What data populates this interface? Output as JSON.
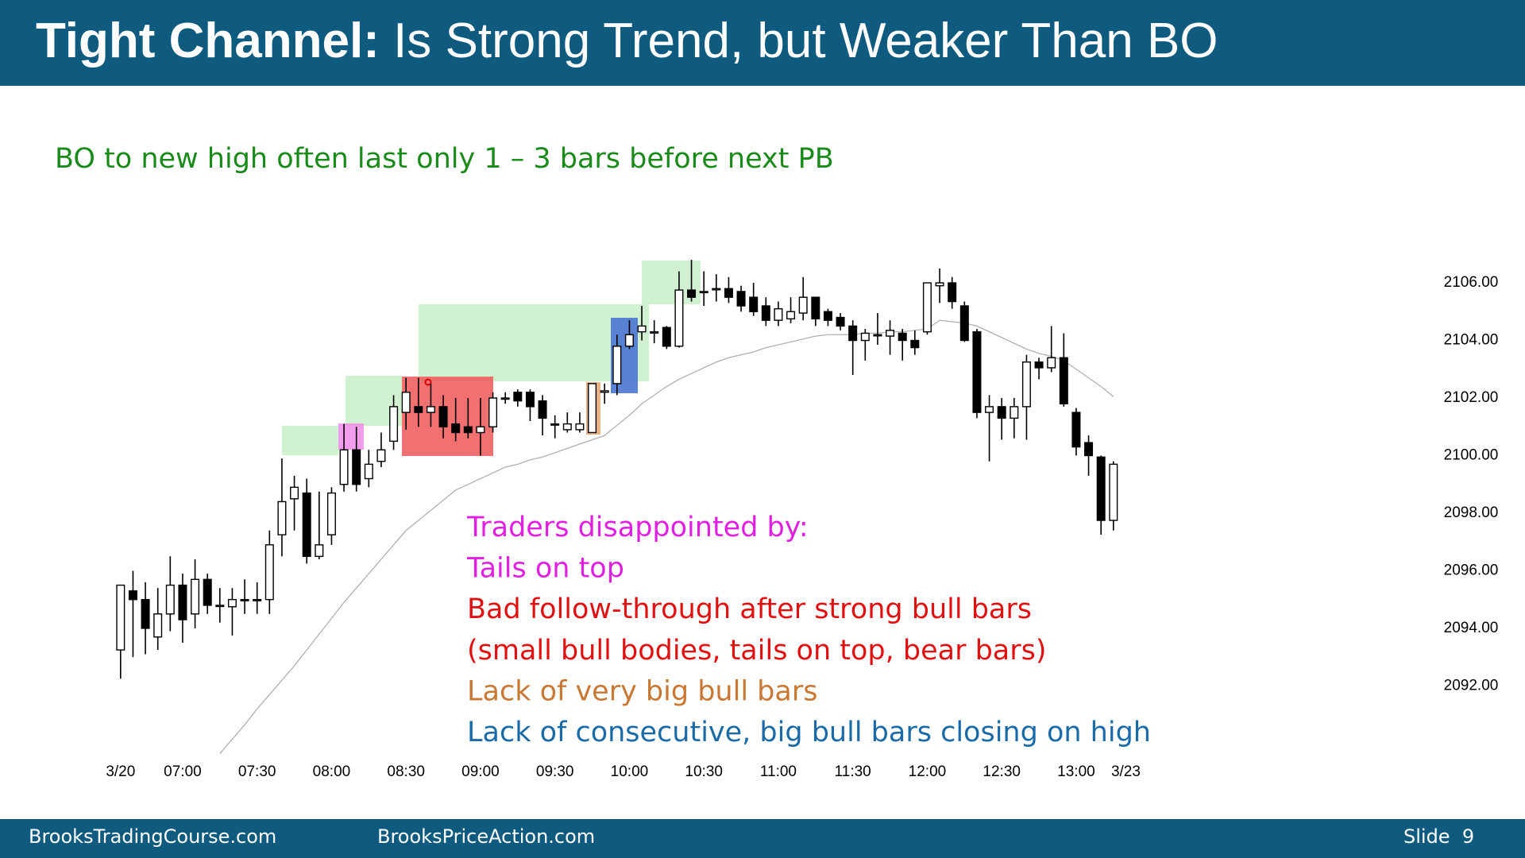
{
  "header": {
    "title_bold": "Tight Channel:",
    "title_rest": "Is Strong Trend, but Weaker Than BO"
  },
  "chart_data": {
    "type": "candlestick",
    "subtitle": "BO to new high often last only 1 – 3 bars before next PB",
    "subtitle_color": "#1a8a1a",
    "annotations": [
      {
        "text": "Traders disappointed by:",
        "color": "#e020e0"
      },
      {
        "text": "Tails on top",
        "color": "#e020e0"
      },
      {
        "text": "Bad follow-through after strong bull bars",
        "color": "#e01010"
      },
      {
        "text": "(small bull bodies, tails on top, bear bars)",
        "color": "#e01010"
      },
      {
        "text": "Lack of very big bull bars",
        "color": "#c87833"
      },
      {
        "text": "Lack of consecutive, big bull bars closing on high",
        "color": "#1a6aa8"
      }
    ],
    "categories": [
      "3/20",
      null,
      null,
      null,
      null,
      "07:00",
      null,
      null,
      null,
      null,
      null,
      "07:30",
      null,
      null,
      null,
      null,
      null,
      "08:00",
      null,
      null,
      null,
      null,
      null,
      "08:30",
      null,
      null,
      null,
      null,
      null,
      "09:00",
      null,
      null,
      null,
      null,
      null,
      "09:30",
      null,
      null,
      null,
      null,
      null,
      "10:00",
      null,
      null,
      null,
      null,
      null,
      "10:30",
      null,
      null,
      null,
      null,
      null,
      "11:00",
      null,
      null,
      null,
      null,
      null,
      "11:30",
      null,
      null,
      null,
      null,
      null,
      "12:00",
      null,
      null,
      null,
      null,
      null,
      "12:30",
      null,
      null,
      null,
      null,
      null,
      "13:00",
      null,
      null,
      null,
      "3/23"
    ],
    "open": [
      2093.25,
      2095.3,
      2095,
      2093.7,
      2094.5,
      2095.5,
      2094.5,
      2095.7,
      2094.8,
      2094.75,
      2095,
      2095,
      2095,
      2097.25,
      2098.5,
      2098.7,
      2096.5,
      2097.25,
      2099,
      2100.2,
      2099.2,
      2099.8,
      2100.5,
      2101.5,
      2101.7,
      2101.5,
      2101.7,
      2101.1,
      2101,
      2100.8,
      2101,
      2102,
      2102.2,
      2102.2,
      2101.9,
      2101.1,
      2100.9,
      2100.9,
      2100.8,
      2102.2,
      2102.5,
      2103.8,
      2104.3,
      2104.3,
      2104.45,
      2103.8,
      2105.75,
      2105.7,
      2105.8,
      2105.8,
      2105.7,
      2105.5,
      2105.2,
      2104.7,
      2104.75,
      2104.95,
      2105.5,
      2105,
      2104.8,
      2104.5,
      2104,
      2104.2,
      2104.15,
      2104.25,
      2104,
      2104.3,
      2105.9,
      2106,
      2105.2,
      2104.3,
      2101.5,
      2101.7,
      2101.3,
      2101.7,
      2103.25,
      2103.05,
      2103.4,
      2101.5,
      2100.45,
      2099.95,
      2097.75,
      null
    ],
    "high": [
      2095.5,
      2096,
      2095.6,
      2095.4,
      2096.5,
      2095.9,
      2096.4,
      2095.9,
      2095.4,
      2095.4,
      2095.7,
      2095.6,
      2097.4,
      2099.9,
      2099.3,
      2099.2,
      2098.75,
      2098.9,
      2101.1,
      2101,
      2100.2,
      2100.8,
      2102.1,
      2102.7,
      2102.7,
      2102.5,
      2102.1,
      2102,
      2102,
      2102,
      2102.2,
      2102.2,
      2102.3,
      2102.3,
      2102.1,
      2101.4,
      2101.5,
      2101.5,
      2102.5,
      2102.5,
      2104.2,
      2104.7,
      2105.2,
      2104.7,
      2104.5,
      2106.4,
      2106.8,
      2106.4,
      2106.3,
      2106.2,
      2105.9,
      2106,
      2105.5,
      2105.35,
      2105.5,
      2106.2,
      2105.5,
      2105.1,
      2104.95,
      2104.7,
      2104.4,
      2104.95,
      2104.7,
      2104.4,
      2104.35,
      2106,
      2106.5,
      2106.2,
      2105.35,
      2104.4,
      2102.1,
      2102,
      2102,
      2103.5,
      2103.4,
      2104.5,
      2104.25,
      2101.65,
      2100.7,
      2100,
      2099.8,
      null
    ],
    "low": [
      2092.25,
      2093,
      2093.1,
      2093.25,
      2093.9,
      2093.5,
      2094,
      2094.5,
      2094.2,
      2093.75,
      2094.5,
      2094.5,
      2094.5,
      2096.5,
      2097.4,
      2096.25,
      2096.4,
      2096.9,
      2098.75,
      2098.75,
      2098.9,
      2099.6,
      2100.2,
      2100.9,
      2101,
      2101,
      2100.6,
      2100.5,
      2100.6,
      2100,
      2100.8,
      2101.8,
      2101.7,
      2101.2,
      2100.7,
      2100.6,
      2100.8,
      2100.8,
      2100.8,
      2101.8,
      2102.1,
      2103.7,
      2104,
      2103.9,
      2103.7,
      2103.75,
      2105.35,
      2105.2,
      2105.35,
      2105.3,
      2105,
      2104.85,
      2104.5,
      2104.5,
      2104.6,
      2104.7,
      2104.5,
      2104.5,
      2104.35,
      2102.8,
      2103.3,
      2103.85,
      2103.5,
      2103.3,
      2103.5,
      2104.2,
      2105.3,
      2105.1,
      2103.95,
      2101.3,
      2099.8,
      2100.55,
      2100.6,
      2100.55,
      2102.65,
      2102.9,
      2101.7,
      2100,
      2099.3,
      2097.25,
      2097.4,
      null
    ],
    "close": [
      2095.5,
      2095,
      2094,
      2094.5,
      2095.5,
      2094.3,
      2095.7,
      2094.8,
      2094.8,
      2095,
      2095,
      2095,
      2096.9,
      2098.4,
      2098.9,
      2096.5,
      2096.9,
      2098.7,
      2100.2,
      2099,
      2099.7,
      2100.2,
      2101.7,
      2102.2,
      2101.5,
      2101.7,
      2101,
      2100.8,
      2100.8,
      2101,
      2102,
      2102,
      2101.9,
      2101.7,
      2101.3,
      2101.1,
      2101.1,
      2101.1,
      2102.5,
      2102.25,
      2103.8,
      2104.2,
      2104.5,
      2104.3,
      2103.8,
      2105.75,
      2105.5,
      2105.7,
      2105.8,
      2105.5,
      2105.2,
      2105,
      2104.7,
      2105.1,
      2105,
      2105.5,
      2104.75,
      2104.7,
      2104.5,
      2104,
      2104.25,
      2104.2,
      2104.35,
      2104,
      2103.75,
      2106,
      2106,
      2105.35,
      2104,
      2101.5,
      2101.7,
      2101.3,
      2101.7,
      2103.25,
      2103.05,
      2103.4,
      2101.8,
      2100.3,
      2100,
      2097.75,
      2099.7,
      null
    ],
    "up_color": "#ffffff",
    "down_color": "#000000",
    "ema": {
      "color": "#b0b0b0",
      "values": [
        null,
        null,
        null,
        null,
        null,
        null,
        null,
        null,
        2089.65,
        2090.15,
        2090.65,
        2091.2,
        2091.7,
        2092.2,
        2092.7,
        2093.25,
        2093.8,
        2094.35,
        2094.9,
        2095.4,
        2095.9,
        2096.4,
        2096.9,
        2097.4,
        2097.75,
        2098.1,
        2098.45,
        2098.8,
        2099,
        2099.2,
        2099.4,
        2099.6,
        2099.7,
        2099.85,
        2099.95,
        2100.1,
        2100.25,
        2100.4,
        2100.55,
        2100.7,
        2101.05,
        2101.4,
        2101.8,
        2102.1,
        2102.4,
        2102.65,
        2102.85,
        2103.05,
        2103.25,
        2103.4,
        2103.5,
        2103.6,
        2103.75,
        2103.85,
        2103.95,
        2104.05,
        2104.15,
        2104.2,
        2104.2,
        2104.2,
        2104.25,
        2104.25,
        2104.3,
        2104.3,
        2104.35,
        2104.4,
        2104.7,
        2104.65,
        2104.6,
        2104.5,
        2104.3,
        2104.1,
        2103.9,
        2103.7,
        2103.55,
        2103.45,
        2103.3,
        2103,
        2102.7,
        2102.4,
        2102.05,
        null
      ]
    },
    "ylim": [
      2089.5,
      2107
    ],
    "yticks": [
      {
        "value": 2092,
        "label": "2092.00"
      },
      {
        "value": 2094,
        "label": "2094.00"
      },
      {
        "value": 2096,
        "label": "2096.00"
      },
      {
        "value": 2098,
        "label": "2098.00"
      },
      {
        "value": 2100,
        "label": "2100.00"
      },
      {
        "value": 2102,
        "label": "2102.00"
      },
      {
        "value": 2104,
        "label": "2104.00"
      },
      {
        "value": 2106,
        "label": "2106.00"
      }
    ]
  },
  "footer": {
    "left": "BrooksTradingCourse.com",
    "middle": "BrooksPriceAction.com",
    "slide": "Slide  9"
  }
}
